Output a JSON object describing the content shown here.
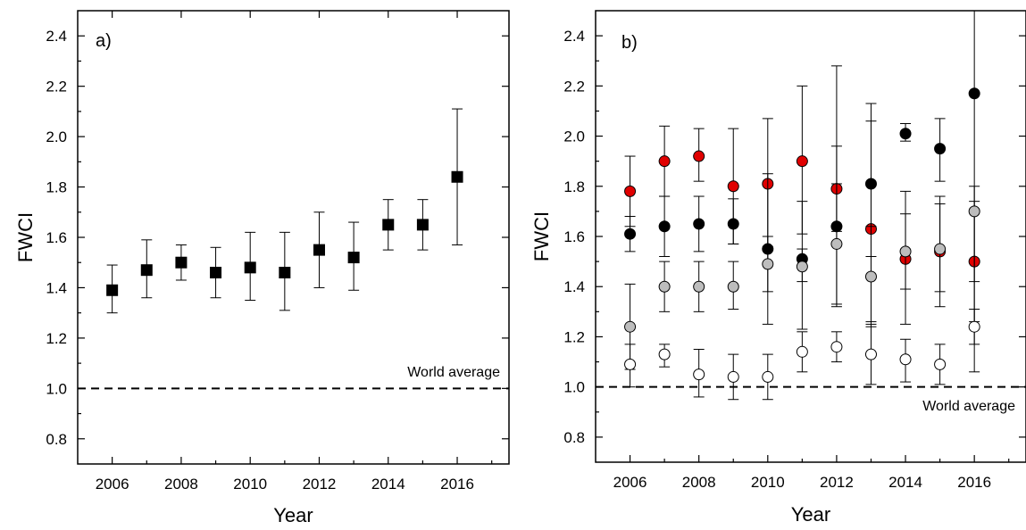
{
  "chart_data": [
    {
      "type": "scatter",
      "panel_label": "a)",
      "xlabel": "Year",
      "ylabel": "FWCI",
      "xlim": [
        2005,
        2017.5
      ],
      "ylim": [
        0.7,
        2.5
      ],
      "xticks": [
        2006,
        2008,
        2010,
        2012,
        2014,
        2016
      ],
      "yticks": [
        0.8,
        1.0,
        1.2,
        1.4,
        1.6,
        1.8,
        2.0,
        2.2,
        2.4
      ],
      "xtick_labels": [
        "2006",
        "2008",
        "2010",
        "2012",
        "2014",
        "2016"
      ],
      "ytick_labels": [
        "0.8",
        "1.0",
        "1.2",
        "1.4",
        "1.6",
        "1.8",
        "2.0",
        "2.2",
        "2.4"
      ],
      "reference_line": {
        "y": 1.0,
        "label": "World average"
      },
      "series": [
        {
          "marker": "square",
          "color": "#000000",
          "points": [
            {
              "x": 2006,
              "y": 1.39,
              "lo": 1.3,
              "hi": 1.49
            },
            {
              "x": 2007,
              "y": 1.47,
              "lo": 1.36,
              "hi": 1.59
            },
            {
              "x": 2008,
              "y": 1.5,
              "lo": 1.43,
              "hi": 1.57
            },
            {
              "x": 2009,
              "y": 1.46,
              "lo": 1.36,
              "hi": 1.56
            },
            {
              "x": 2010,
              "y": 1.48,
              "lo": 1.35,
              "hi": 1.62
            },
            {
              "x": 2011,
              "y": 1.46,
              "lo": 1.31,
              "hi": 1.62
            },
            {
              "x": 2012,
              "y": 1.55,
              "lo": 1.4,
              "hi": 1.7
            },
            {
              "x": 2013,
              "y": 1.52,
              "lo": 1.39,
              "hi": 1.66
            },
            {
              "x": 2014,
              "y": 1.65,
              "lo": 1.55,
              "hi": 1.75
            },
            {
              "x": 2015,
              "y": 1.65,
              "lo": 1.55,
              "hi": 1.75
            },
            {
              "x": 2016,
              "y": 1.84,
              "lo": 1.57,
              "hi": 2.11
            }
          ]
        }
      ]
    },
    {
      "type": "scatter",
      "panel_label": "b)",
      "xlabel": "Year",
      "ylabel": "FWCI",
      "xlim": [
        2005,
        2017.5
      ],
      "ylim": [
        0.7,
        2.5
      ],
      "xticks": [
        2006,
        2008,
        2010,
        2012,
        2014,
        2016
      ],
      "yticks": [
        0.8,
        1.0,
        1.2,
        1.4,
        1.6,
        1.8,
        2.0,
        2.2,
        2.4
      ],
      "xtick_labels": [
        "2006",
        "2008",
        "2010",
        "2012",
        "2014",
        "2016"
      ],
      "ytick_labels": [
        "0.8",
        "1.0",
        "1.2",
        "1.4",
        "1.6",
        "1.8",
        "2.0",
        "2.2",
        "2.4"
      ],
      "reference_line": {
        "y": 1.0,
        "label": "World average"
      },
      "series": [
        {
          "marker": "circle",
          "color": "#e00000",
          "points": [
            {
              "x": 2006,
              "y": 1.78,
              "lo": 1.64,
              "hi": 1.92
            },
            {
              "x": 2007,
              "y": 1.9,
              "lo": 1.76,
              "hi": 2.04
            },
            {
              "x": 2008,
              "y": 1.92,
              "lo": 1.82,
              "hi": 2.03
            },
            {
              "x": 2009,
              "y": 1.8,
              "lo": 1.57,
              "hi": 2.03
            },
            {
              "x": 2010,
              "y": 1.81,
              "lo": 1.56,
              "hi": 2.07
            },
            {
              "x": 2011,
              "y": 1.9,
              "lo": 1.61,
              "hi": 2.2
            },
            {
              "x": 2012,
              "y": 1.79,
              "lo": 1.62,
              "hi": 1.96
            },
            {
              "x": 2013,
              "y": 1.63,
              "lo": 1.26,
              "hi": 2.06
            },
            {
              "x": 2014,
              "y": 1.51,
              "lo": 1.25,
              "hi": 1.78
            },
            {
              "x": 2015,
              "y": 1.54,
              "lo": 1.32,
              "hi": 1.76
            },
            {
              "x": 2016,
              "y": 1.5,
              "lo": 1.26,
              "hi": 1.74
            }
          ]
        },
        {
          "marker": "circle",
          "color": "#000000",
          "points": [
            {
              "x": 2006,
              "y": 1.61,
              "lo": 1.54,
              "hi": 1.68
            },
            {
              "x": 2007,
              "y": 1.64,
              "lo": 1.52,
              "hi": 1.76
            },
            {
              "x": 2008,
              "y": 1.65,
              "lo": 1.54,
              "hi": 1.76
            },
            {
              "x": 2009,
              "y": 1.65,
              "lo": 1.57,
              "hi": 1.75
            },
            {
              "x": 2010,
              "y": 1.55,
              "lo": 1.25,
              "hi": 1.85
            },
            {
              "x": 2011,
              "y": 1.51,
              "lo": 1.23,
              "hi": 1.74
            },
            {
              "x": 2012,
              "y": 1.64,
              "lo": 1.33,
              "hi": 1.81
            },
            {
              "x": 2013,
              "y": 1.81,
              "lo": 1.52,
              "hi": 2.13
            },
            {
              "x": 2014,
              "y": 2.01,
              "lo": 1.98,
              "hi": 2.05
            },
            {
              "x": 2015,
              "y": 1.95,
              "lo": 1.82,
              "hi": 2.07
            },
            {
              "x": 2016,
              "y": 2.17,
              "lo": 1.06,
              "hi": 2.5
            }
          ]
        },
        {
          "marker": "circle",
          "color": "#bdbdbd",
          "points": [
            {
              "x": 2006,
              "y": 1.24,
              "lo": 1.07,
              "hi": 1.41
            },
            {
              "x": 2007,
              "y": 1.4,
              "lo": 1.3,
              "hi": 1.5
            },
            {
              "x": 2008,
              "y": 1.4,
              "lo": 1.3,
              "hi": 1.5
            },
            {
              "x": 2009,
              "y": 1.4,
              "lo": 1.31,
              "hi": 1.5
            },
            {
              "x": 2010,
              "y": 1.49,
              "lo": 1.38,
              "hi": 1.6
            },
            {
              "x": 2011,
              "y": 1.48,
              "lo": 1.42,
              "hi": 1.55
            },
            {
              "x": 2012,
              "y": 1.57,
              "lo": 1.32,
              "hi": 2.28
            },
            {
              "x": 2013,
              "y": 1.44,
              "lo": 1.24,
              "hi": 1.64
            },
            {
              "x": 2014,
              "y": 1.54,
              "lo": 1.39,
              "hi": 1.69
            },
            {
              "x": 2015,
              "y": 1.55,
              "lo": 1.38,
              "hi": 1.73
            },
            {
              "x": 2016,
              "y": 1.7,
              "lo": 1.42,
              "hi": 1.8
            }
          ]
        },
        {
          "marker": "circle",
          "color": "#ffffff",
          "points": [
            {
              "x": 2006,
              "y": 1.09,
              "lo": 1.0,
              "hi": 1.17
            },
            {
              "x": 2007,
              "y": 1.13,
              "lo": 1.08,
              "hi": 1.17
            },
            {
              "x": 2008,
              "y": 1.05,
              "lo": 0.96,
              "hi": 1.15
            },
            {
              "x": 2009,
              "y": 1.04,
              "lo": 0.95,
              "hi": 1.13
            },
            {
              "x": 2010,
              "y": 1.04,
              "lo": 0.95,
              "hi": 1.13
            },
            {
              "x": 2011,
              "y": 1.14,
              "lo": 1.06,
              "hi": 1.22
            },
            {
              "x": 2012,
              "y": 1.16,
              "lo": 1.1,
              "hi": 1.22
            },
            {
              "x": 2013,
              "y": 1.13,
              "lo": 1.01,
              "hi": 1.25
            },
            {
              "x": 2014,
              "y": 1.11,
              "lo": 1.02,
              "hi": 1.19
            },
            {
              "x": 2015,
              "y": 1.09,
              "lo": 1.01,
              "hi": 1.17
            },
            {
              "x": 2016,
              "y": 1.24,
              "lo": 1.17,
              "hi": 1.31
            }
          ]
        }
      ]
    }
  ]
}
